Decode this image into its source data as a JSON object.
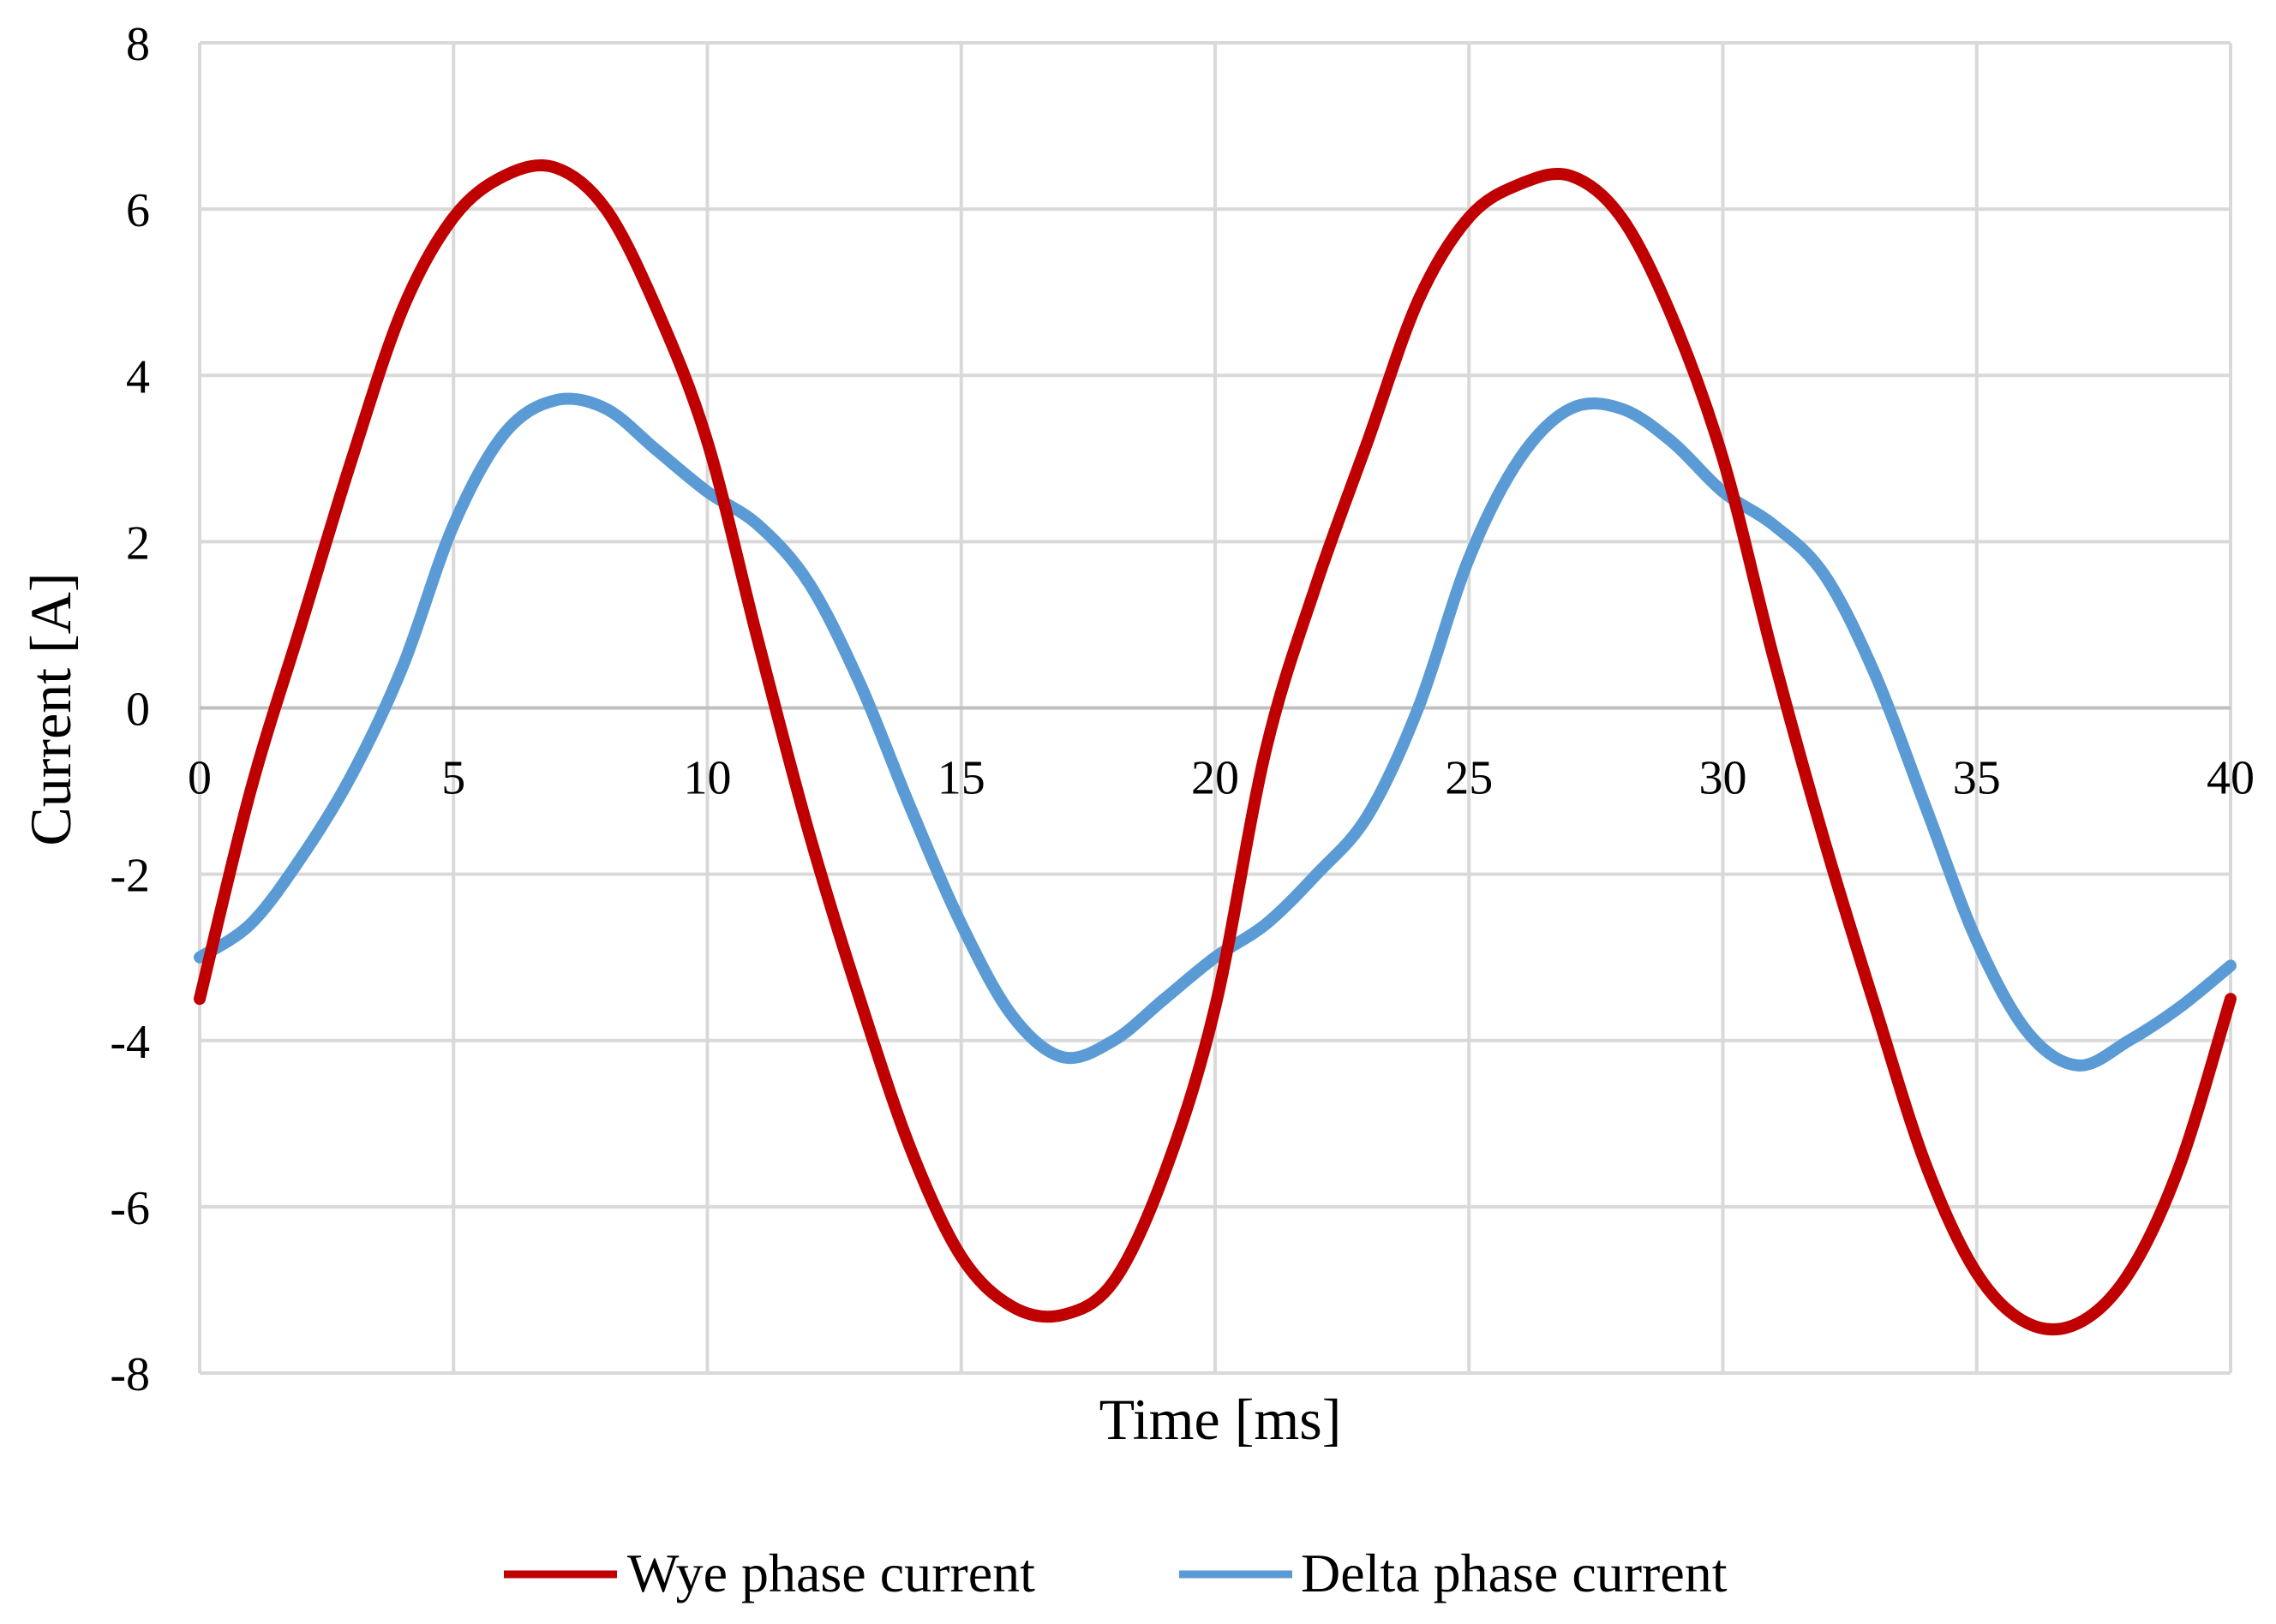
{
  "chart_data": {
    "type": "line",
    "title": "",
    "xlabel": "Time [ms]",
    "ylabel": "Current [A]",
    "xlim": [
      0,
      40
    ],
    "ylim": [
      -8,
      8
    ],
    "x_ticks": [
      0,
      5,
      10,
      15,
      20,
      25,
      30,
      35,
      40
    ],
    "y_ticks": [
      8,
      6,
      4,
      2,
      0,
      -2,
      -4,
      -6,
      -8
    ],
    "grid": true,
    "legend_position": "bottom",
    "series": [
      {
        "name": "Wye phase current",
        "color": "#c00000",
        "x": [
          0,
          1,
          2,
          3,
          4,
          5,
          6,
          7,
          8,
          9,
          10,
          11,
          12,
          13,
          14,
          15,
          16,
          17,
          18,
          19,
          20,
          21,
          22,
          23,
          24,
          25,
          26,
          27,
          28,
          29,
          30,
          31,
          32,
          33,
          34,
          35,
          36,
          37,
          38,
          39,
          40
        ],
        "y": [
          -3.5,
          -1.0,
          1.0,
          3.0,
          4.8,
          5.9,
          6.4,
          6.5,
          6.0,
          4.8,
          3.2,
          0.8,
          -1.5,
          -3.5,
          -5.3,
          -6.6,
          -7.2,
          -7.3,
          -6.9,
          -5.6,
          -3.6,
          -0.5,
          1.5,
          3.2,
          4.9,
          5.9,
          6.3,
          6.4,
          5.9,
          4.7,
          3.0,
          0.6,
          -1.6,
          -3.6,
          -5.5,
          -6.8,
          -7.4,
          -7.4,
          -6.8,
          -5.5,
          -3.5
        ]
      },
      {
        "name": "Delta phase current",
        "color": "#5b9bd5",
        "x": [
          0,
          1,
          2,
          3,
          4,
          5,
          6,
          7,
          8,
          9,
          10,
          11,
          12,
          13,
          14,
          15,
          16,
          17,
          18,
          19,
          20,
          21,
          22,
          23,
          24,
          25,
          26,
          27,
          28,
          29,
          30,
          31,
          32,
          33,
          34,
          35,
          36,
          37,
          38,
          39,
          40
        ],
        "y": [
          -3.0,
          -2.6,
          -1.8,
          -0.8,
          0.5,
          2.2,
          3.3,
          3.7,
          3.6,
          3.1,
          2.6,
          2.2,
          1.5,
          0.3,
          -1.2,
          -2.6,
          -3.7,
          -4.2,
          -4.0,
          -3.5,
          -3.0,
          -2.6,
          -2.0,
          -1.3,
          0.0,
          1.8,
          3.0,
          3.6,
          3.6,
          3.2,
          2.6,
          2.2,
          1.6,
          0.4,
          -1.2,
          -2.8,
          -3.9,
          -4.3,
          -4.0,
          -3.6,
          -3.1
        ]
      }
    ]
  }
}
